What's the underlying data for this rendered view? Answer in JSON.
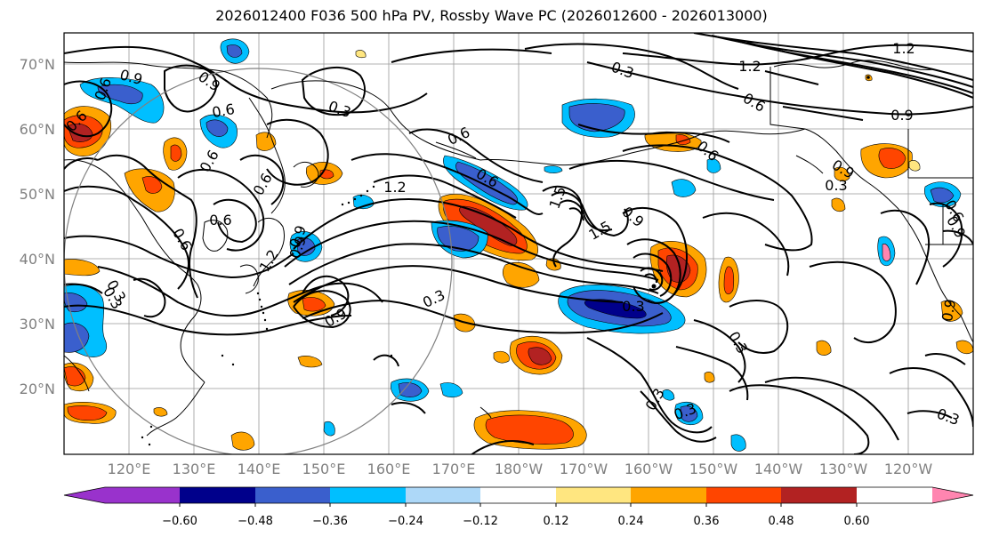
{
  "title": "2026012400 F036 500 hPa PV, Rossby Wave PC (2026012600 - 2026013000)",
  "lat_labels": [
    "70°N",
    "60°N",
    "50°N",
    "40°N",
    "30°N",
    "20°N"
  ],
  "lon_labels": [
    "120°E",
    "130°E",
    "140°E",
    "150°E",
    "160°E",
    "170°E",
    "180°W",
    "170°W",
    "160°W",
    "150°W",
    "140°W",
    "130°W",
    "120°W"
  ],
  "contour_labels": [
    "0.9",
    "0.9",
    "1.2",
    "0.9",
    "0.6",
    "0.3",
    "0.3",
    "0.6",
    "0.6",
    "0.6",
    "1.2",
    "0.6",
    "0.9",
    "1.2",
    "0.6",
    "0.3",
    "0.6",
    "0.6",
    "0.6",
    "1.2",
    "1.5",
    "1.5",
    "0.9",
    "0.3",
    "0.6",
    "0.9",
    "0.9",
    "0.3",
    "0.3",
    "0.3",
    "0.3",
    "0.3",
    "0.3",
    "0.6",
    "0.9",
    "0.9",
    "0.6",
    "0.9",
    "0.3"
  ],
  "colorbar": {
    "ticks": [
      "−0.60",
      "−0.48",
      "−0.36",
      "−0.24",
      "−0.12",
      "0.12",
      "0.24",
      "0.36",
      "0.48",
      "0.60"
    ],
    "colors": [
      "#9932CC",
      "#00008B",
      "#3A5FCD",
      "#00BFFF",
      "#ADD8F8",
      "#FFFFFF",
      "#FFE680",
      "#FFA500",
      "#FF4500",
      "#B22222",
      "#FF85B0"
    ]
  },
  "fill_colors": {
    "light_blue": "#ADD8F8",
    "blue": "#00BFFF",
    "mid_blue": "#3A5FCD",
    "navy": "#00008B",
    "yellow": "#FFE680",
    "orange": "#FFA500",
    "red": "#FF4500",
    "dark_red": "#B22222"
  }
}
